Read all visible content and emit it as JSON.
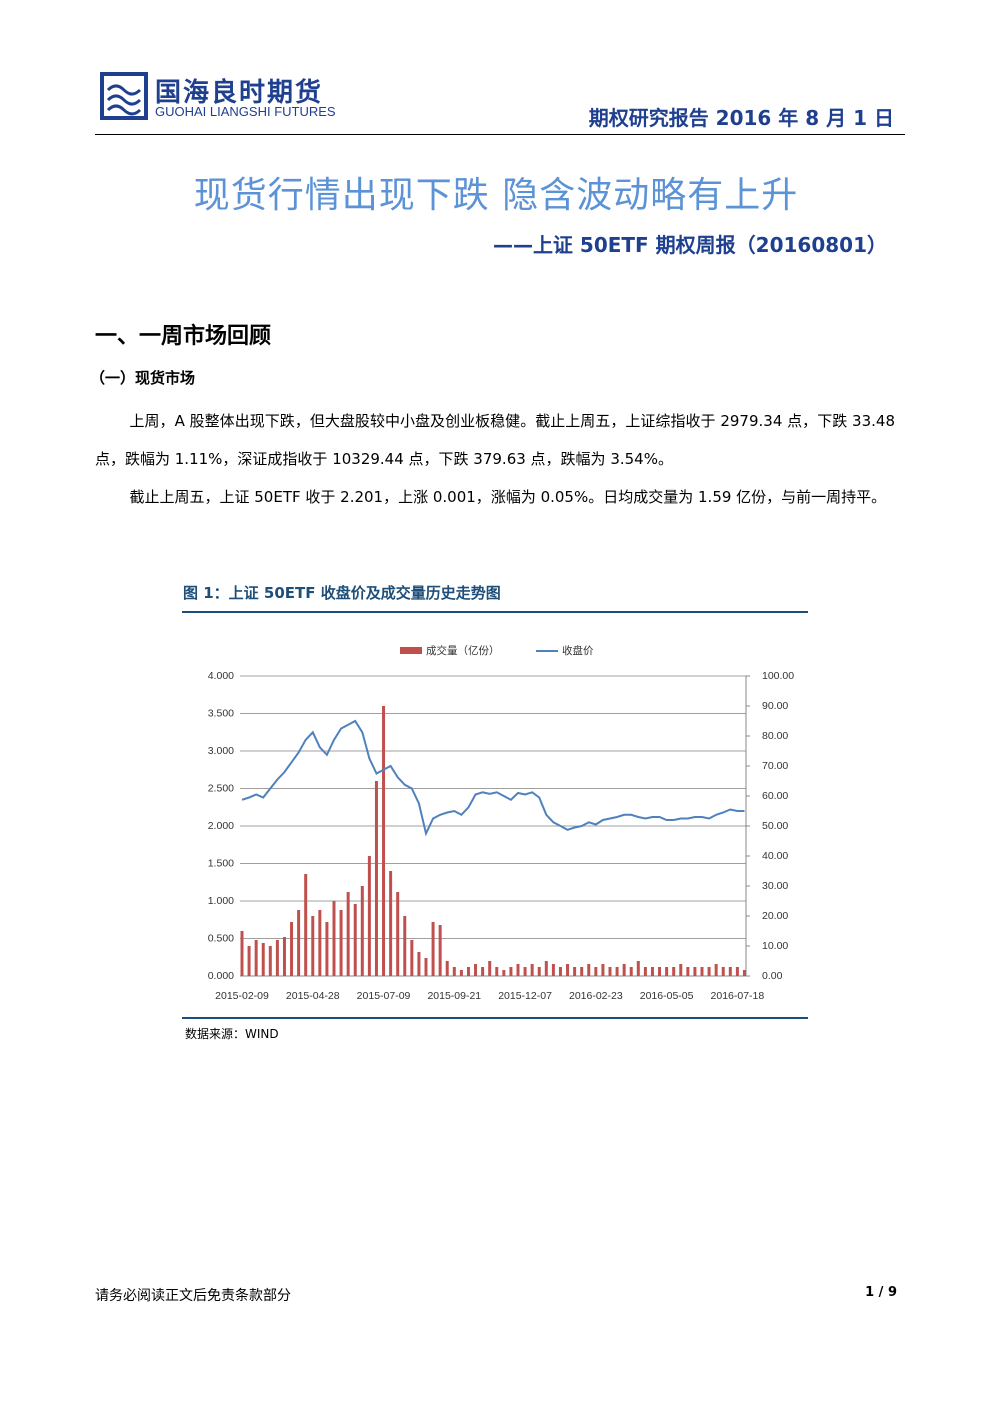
{
  "header": {
    "logo_cn": "国海良时期货",
    "logo_en": "GUOHAI LIANGSHI FUTURES",
    "report_info": "期权研究报告 2016 年 8 月 1 日"
  },
  "title": "现货行情出现下跌 隐含波动略有上升",
  "subtitle": "——上证 50ETF 期权周报（20160801）",
  "section": {
    "heading": "一、一周市场回顾"
  },
  "subsection": {
    "heading": "（一）现货市场"
  },
  "paragraphs": [
    "上周，A 股整体出现下跌，但大盘股较中小盘及创业板稳健。截止上周五，上证综指收于 2979.34 点，下跌 33.48 点，跌幅为 1.11%，深证成指收于 10329.44 点，下跌 379.63 点，跌幅为 3.54%。",
    "截止上周五，上证 50ETF 收于 2.201，上涨 0.001，涨幅为 0.05%。日均成交量为 1.59 亿份，与前一周持平。"
  ],
  "figure": {
    "caption": "图 1：上证 50ETF 收盘价及成交量历史走势图",
    "source": "数据来源：WIND"
  },
  "footer": {
    "left": "请务必阅读正文后免责条款部分",
    "page": "1 / 9"
  },
  "chart_data": {
    "type": "combo",
    "categories": [
      "2015-02-09",
      null,
      null,
      null,
      null,
      null,
      null,
      null,
      null,
      null,
      "2015-04-28",
      null,
      null,
      null,
      null,
      null,
      null,
      null,
      null,
      null,
      "2015-07-09",
      null,
      null,
      null,
      null,
      null,
      null,
      null,
      null,
      null,
      "2015-09-21",
      null,
      null,
      null,
      null,
      null,
      null,
      null,
      null,
      null,
      "2015-12-07",
      null,
      null,
      null,
      null,
      null,
      null,
      null,
      null,
      null,
      "2016-02-23",
      null,
      null,
      null,
      null,
      null,
      null,
      null,
      null,
      null,
      "2016-05-05",
      null,
      null,
      null,
      null,
      null,
      null,
      null,
      null,
      null,
      "2016-07-18",
      null
    ],
    "series": [
      {
        "name": "成交量（亿份）",
        "color": "#c0504d",
        "axis": "y2",
        "values": [
          15,
          10,
          12,
          11,
          10,
          12,
          13,
          18,
          22,
          34,
          20,
          22,
          18,
          25,
          22,
          28,
          24,
          30,
          40,
          65,
          90,
          35,
          28,
          20,
          12,
          8,
          6,
          18,
          17,
          5,
          3,
          2,
          3,
          4,
          3,
          5,
          3,
          2,
          3,
          4,
          3,
          4,
          3,
          5,
          4,
          3,
          4,
          3,
          3,
          4,
          3,
          4,
          3,
          3,
          4,
          3,
          5,
          3,
          3,
          3,
          3,
          3,
          4,
          3,
          3,
          3,
          3,
          4,
          3,
          3,
          3,
          2
        ]
      },
      {
        "name": "收盘价",
        "color": "#4f81bd",
        "values": [
          2.35,
          2.38,
          2.42,
          2.38,
          2.5,
          2.62,
          2.72,
          2.85,
          2.98,
          3.15,
          3.25,
          3.05,
          2.95,
          3.15,
          3.3,
          3.35,
          3.4,
          3.25,
          2.9,
          2.7,
          2.75,
          2.8,
          2.65,
          2.55,
          2.5,
          2.3,
          1.9,
          2.1,
          2.15,
          2.18,
          2.2,
          2.15,
          2.25,
          2.42,
          2.45,
          2.43,
          2.45,
          2.4,
          2.35,
          2.44,
          2.42,
          2.45,
          2.38,
          2.15,
          2.05,
          2.0,
          1.95,
          1.98,
          2.0,
          2.05,
          2.02,
          2.08,
          2.1,
          2.12,
          2.15,
          2.15,
          2.12,
          2.1,
          2.12,
          2.12,
          2.08,
          2.08,
          2.1,
          2.1,
          2.12,
          2.12,
          2.1,
          2.15,
          2.18,
          2.22,
          2.2,
          2.2
        ]
      }
    ],
    "ylim": [
      0,
      4
    ],
    "yticks": [
      {
        "value": 0,
        "label": "0.000"
      },
      {
        "value": 0.5,
        "label": "0.500"
      },
      {
        "value": 1,
        "label": "1.000"
      },
      {
        "value": 1.5,
        "label": "1.500"
      },
      {
        "value": 2,
        "label": "2.000"
      },
      {
        "value": 2.5,
        "label": "2.500"
      },
      {
        "value": 3,
        "label": "3.000"
      },
      {
        "value": 3.5,
        "label": "3.500"
      },
      {
        "value": 4,
        "label": "4.000"
      }
    ],
    "y2lim": [
      0,
      100
    ],
    "y2ticks": [
      {
        "value": 0,
        "label": "0.00"
      },
      {
        "value": 10,
        "label": "10.00"
      },
      {
        "value": 20,
        "label": "20.00"
      },
      {
        "value": 30,
        "label": "30.00"
      },
      {
        "value": 40,
        "label": "40.00"
      },
      {
        "value": 50,
        "label": "50.00"
      },
      {
        "value": 60,
        "label": "60.00"
      },
      {
        "value": 70,
        "label": "70.00"
      },
      {
        "value": 80,
        "label": "80.00"
      },
      {
        "value": 90,
        "label": "90.00"
      },
      {
        "value": 100,
        "label": "100.00"
      }
    ],
    "grid": true,
    "legend": "top"
  }
}
